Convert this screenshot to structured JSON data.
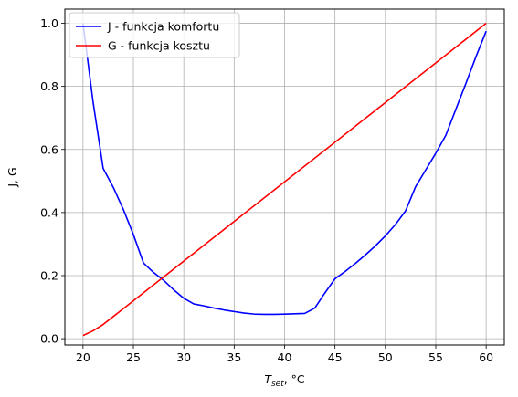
{
  "chart_data": {
    "type": "line",
    "title": "",
    "xlabel_main": "T",
    "xlabel_sub": "set",
    "xlabel_unit": ", °C",
    "ylabel": "J, G",
    "xlim": [
      18.2,
      61.8
    ],
    "ylim": [
      -0.02,
      1.045
    ],
    "xticks": [
      20,
      25,
      30,
      35,
      40,
      45,
      50,
      55,
      60
    ],
    "yticks": [
      0.0,
      0.2,
      0.4,
      0.6,
      0.8,
      1.0
    ],
    "grid": true,
    "legend_position": "top-left",
    "series": [
      {
        "name": "J - funkcja komfortu",
        "color": "#0000ff",
        "x": [
          20,
          21,
          22,
          23,
          24,
          25,
          26,
          27,
          28,
          29,
          30,
          31,
          32,
          33,
          34,
          35,
          36,
          37,
          38,
          39,
          40,
          41,
          42,
          43,
          44,
          45,
          46,
          47,
          48,
          49,
          50,
          51,
          52,
          53,
          54,
          55,
          56,
          57,
          58,
          59,
          60
        ],
        "y": [
          1.0,
          0.75,
          0.54,
          0.48,
          0.41,
          0.33,
          0.24,
          0.21,
          0.185,
          0.155,
          0.128,
          0.11,
          0.104,
          0.097,
          0.091,
          0.086,
          0.081,
          0.078,
          0.077,
          0.077,
          0.078,
          0.079,
          0.08,
          0.097,
          0.145,
          0.19,
          0.213,
          0.238,
          0.265,
          0.294,
          0.326,
          0.362,
          0.405,
          0.482,
          0.535,
          0.588,
          0.645,
          0.728,
          0.81,
          0.895,
          0.975
        ]
      },
      {
        "name": "G - funkcja kosztu",
        "color": "#ff0000",
        "x": [
          20,
          21,
          22,
          60
        ],
        "y": [
          0.01,
          0.025,
          0.045,
          1.0
        ]
      }
    ]
  }
}
